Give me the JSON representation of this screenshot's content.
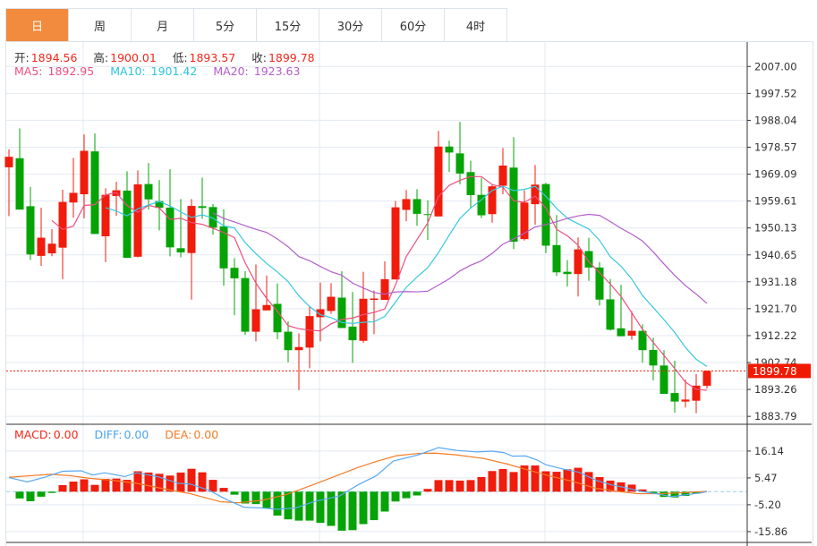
{
  "tabs": [
    "日",
    "周",
    "月",
    "5分",
    "15分",
    "30分",
    "60分",
    "4时"
  ],
  "active_tab": 0,
  "ohlc": {
    "open_label": "开:",
    "open": "1894.56",
    "high_label": "高:",
    "high": "1900.01",
    "low_label": "低:",
    "low": "1893.57",
    "close_label": "收:",
    "close": "1899.78"
  },
  "ma": {
    "ma5_label": "MA5:",
    "ma5": "1892.95",
    "ma10_label": "MA10:",
    "ma10": "1901.42",
    "ma20_label": "MA20:",
    "ma20": "1923.63"
  },
  "macd_info": {
    "macd_label": "MACD:",
    "macd": "0.00",
    "diff_label": "DIFF:",
    "diff": "0.00",
    "dea_label": "DEA:",
    "dea": "0.00"
  },
  "colors": {
    "up": "#f01c0c",
    "down": "#06a306",
    "ma5": "#ec4f80",
    "ma10": "#37c8e0",
    "ma20": "#b25ec9",
    "diff": "#5aa9f0",
    "dea": "#f37b23",
    "accent": "#f28b3d"
  },
  "chart_data": {
    "type": "candlestick",
    "price_axis": {
      "ticks": [
        "2007.00",
        "1997.52",
        "1988.04",
        "1978.57",
        "1969.09",
        "1959.61",
        "1950.13",
        "1940.65",
        "1931.18",
        "1921.70",
        "1912.22",
        "1902.74",
        "1893.26",
        "1883.79"
      ],
      "range": [
        1881.0,
        2015.6
      ]
    },
    "last_price": "1899.78",
    "candles_ohlc": [
      [
        1971.5,
        1977.8,
        1954.3,
        1975.2
      ],
      [
        1974.7,
        1985.2,
        1956.6,
        1956.6
      ],
      [
        1957.8,
        1964.6,
        1938.9,
        1940.8
      ],
      [
        1940.3,
        1957.3,
        1936.8,
        1946.7
      ],
      [
        1941.2,
        1949.7,
        1940.2,
        1944.6
      ],
      [
        1943.2,
        1963.6,
        1932.1,
        1959.3
      ],
      [
        1959.1,
        1974.8,
        1953.7,
        1962.5
      ],
      [
        1962.0,
        1983.1,
        1953.5,
        1977.3
      ],
      [
        1977.1,
        1983.4,
        1948.0,
        1948.0
      ],
      [
        1947.2,
        1964.1,
        1938.1,
        1961.8
      ],
      [
        1961.4,
        1966.4,
        1954.4,
        1963.4
      ],
      [
        1963.3,
        1970.1,
        1939.6,
        1939.6
      ],
      [
        1940.0,
        1970.4,
        1939.8,
        1965.5
      ],
      [
        1965.6,
        1973.0,
        1956.6,
        1960.2
      ],
      [
        1959.6,
        1967.0,
        1949.3,
        1957.2
      ],
      [
        1957.3,
        1970.8,
        1940.1,
        1943.3
      ],
      [
        1943.0,
        1960.3,
        1939.8,
        1941.5
      ],
      [
        1941.3,
        1960.3,
        1924.9,
        1957.9
      ],
      [
        1957.8,
        1967.9,
        1953.4,
        1957.2
      ],
      [
        1957.5,
        1958.6,
        1947.8,
        1950.2
      ],
      [
        1950.7,
        1956.7,
        1929.8,
        1935.9
      ],
      [
        1936.1,
        1939.5,
        1919.4,
        1932.4
      ],
      [
        1932.5,
        1934.9,
        1912.5,
        1913.6
      ],
      [
        1913.6,
        1937.3,
        1910.2,
        1921.5
      ],
      [
        1921.1,
        1933.4,
        1921.1,
        1923.0
      ],
      [
        1923.4,
        1930.6,
        1910.9,
        1913.4
      ],
      [
        1913.6,
        1917.2,
        1902.8,
        1907.1
      ],
      [
        1907.1,
        1913.0,
        1893.0,
        1908.2
      ],
      [
        1908.0,
        1922.5,
        1900.7,
        1919.1
      ],
      [
        1918.7,
        1930.9,
        1910.2,
        1921.5
      ],
      [
        1920.9,
        1930.7,
        1919.9,
        1925.9
      ],
      [
        1925.6,
        1934.9,
        1914.9,
        1914.9
      ],
      [
        1915.4,
        1927.6,
        1902.6,
        1910.6
      ],
      [
        1910.4,
        1934.7,
        1909.7,
        1925.2
      ],
      [
        1924.8,
        1928.1,
        1912.7,
        1925.3
      ],
      [
        1924.8,
        1938.4,
        1924.8,
        1932.1
      ],
      [
        1932.0,
        1959.6,
        1932.0,
        1957.4
      ],
      [
        1956.5,
        1963.5,
        1952.5,
        1960.3
      ],
      [
        1960.3,
        1963.8,
        1950.9,
        1955.1
      ],
      [
        1955.0,
        1959.9,
        1945.9,
        1954.7
      ],
      [
        1954.2,
        1984.3,
        1954.2,
        1978.8
      ],
      [
        1978.8,
        1980.9,
        1969.8,
        1976.7
      ],
      [
        1976.4,
        1987.5,
        1965.5,
        1969.3
      ],
      [
        1969.8,
        1973.8,
        1957.3,
        1961.7
      ],
      [
        1961.8,
        1967.8,
        1953.6,
        1954.6
      ],
      [
        1955.0,
        1965.4,
        1952.0,
        1964.8
      ],
      [
        1965.0,
        1978.3,
        1962.0,
        1972.1
      ],
      [
        1971.4,
        1982.1,
        1942.7,
        1945.3
      ],
      [
        1946.2,
        1963.4,
        1945.7,
        1959.1
      ],
      [
        1958.5,
        1972.3,
        1951.3,
        1965.4
      ],
      [
        1965.6,
        1966.0,
        1941.3,
        1943.9
      ],
      [
        1944.1,
        1954.7,
        1933.2,
        1934.5
      ],
      [
        1934.7,
        1938.8,
        1929.5,
        1933.9
      ],
      [
        1933.9,
        1946.8,
        1926.0,
        1942.6
      ],
      [
        1942.0,
        1946.7,
        1931.5,
        1936.2
      ],
      [
        1936.2,
        1938.1,
        1922.8,
        1924.9
      ],
      [
        1925.0,
        1932.2,
        1914.0,
        1914.3
      ],
      [
        1914.8,
        1930.1,
        1912.0,
        1912.0
      ],
      [
        1912.2,
        1920.8,
        1910.8,
        1913.9
      ],
      [
        1913.9,
        1916.2,
        1902.7,
        1907.1
      ],
      [
        1907.2,
        1911.5,
        1896.4,
        1901.7
      ],
      [
        1901.7,
        1907.1,
        1891.7,
        1891.7
      ],
      [
        1892.0,
        1903.4,
        1885.1,
        1889.0
      ],
      [
        1889.0,
        1896.7,
        1886.9,
        1889.7
      ],
      [
        1889.3,
        1898.7,
        1884.9,
        1894.6
      ],
      [
        1894.56,
        1900.01,
        1893.57,
        1899.78
      ]
    ],
    "macd_axis": {
      "ticks": [
        "16.14",
        "5.47",
        "-5.20",
        "-15.86"
      ],
      "tick_values": [
        16.14,
        5.47,
        -5.2,
        -15.86
      ]
    },
    "macd_hist": [
      0,
      -2.7,
      -3.8,
      -2.0,
      -0.5,
      2.6,
      4.0,
      4.9,
      2.7,
      5.1,
      5.2,
      4.7,
      8.1,
      7.6,
      7.1,
      6.4,
      7.6,
      9.1,
      7.7,
      4.7,
      1.5,
      -1.2,
      -4.7,
      -4.9,
      -6.5,
      -9.5,
      -11.0,
      -11.5,
      -11.5,
      -12.4,
      -13.6,
      -15.5,
      -15.3,
      -12.9,
      -11.3,
      -7.9,
      -3.9,
      -2.6,
      -1.5,
      1.1,
      4.6,
      4.6,
      4.4,
      4.6,
      5.8,
      8.2,
      9.0,
      7.8,
      10.4,
      10.4,
      8.1,
      7.9,
      8.9,
      9.5,
      7.8,
      5.8,
      4.4,
      3.7,
      2.8,
      0.9,
      -0.8,
      -2.1,
      -2.3,
      -1.7,
      -0.8,
      0
    ],
    "diff": [
      [
        0,
        5.6
      ],
      [
        1.7,
        3.9
      ],
      [
        3.3,
        5.7
      ],
      [
        5,
        8.1
      ],
      [
        6.7,
        8.3
      ],
      [
        7.8,
        6.6
      ],
      [
        8.9,
        7.5
      ],
      [
        10.8,
        6.0
      ],
      [
        11.9,
        7.5
      ],
      [
        13.9,
        5.9
      ],
      [
        15.8,
        3.3
      ],
      [
        16.9,
        3.0
      ],
      [
        18.6,
        0.6
      ],
      [
        20.3,
        -3.2
      ],
      [
        21.9,
        -6.2
      ],
      [
        23.6,
        -6.5
      ],
      [
        25,
        -7.0
      ],
      [
        26.7,
        -6.5
      ],
      [
        28.3,
        -4.1
      ],
      [
        30.8,
        -1.7
      ],
      [
        32.5,
        2.7
      ],
      [
        34.2,
        6.3
      ],
      [
        35.8,
        12.2
      ],
      [
        38.1,
        14.6
      ],
      [
        40,
        17.5
      ],
      [
        41.7,
        16.4
      ],
      [
        43.6,
        15.8
      ],
      [
        45,
        16.1
      ],
      [
        46.1,
        15.5
      ],
      [
        46.9,
        14.1
      ],
      [
        48.1,
        14.2
      ],
      [
        49.2,
        12.6
      ],
      [
        50,
        10.7
      ],
      [
        51.7,
        8.9
      ],
      [
        53.1,
        7.7
      ],
      [
        54.7,
        4.5
      ],
      [
        56.1,
        2.7
      ],
      [
        57.5,
        1.5
      ],
      [
        58.9,
        0.1
      ],
      [
        60.3,
        -0.8
      ],
      [
        61.7,
        -2.0
      ],
      [
        63.1,
        -1.2
      ],
      [
        64.4,
        -0.5
      ],
      [
        65,
        0
      ]
    ],
    "dea": [
      [
        0,
        5.7
      ],
      [
        1.9,
        6.3
      ],
      [
        3.9,
        6.9
      ],
      [
        5.8,
        6.3
      ],
      [
        7.5,
        5.3
      ],
      [
        9.7,
        4.5
      ],
      [
        11.9,
        3.3
      ],
      [
        14.7,
        0.9
      ],
      [
        16.9,
        -0.8
      ],
      [
        19.7,
        -4.0
      ],
      [
        21.4,
        -4.4
      ],
      [
        23.6,
        -3.4
      ],
      [
        25.8,
        -1.2
      ],
      [
        28.3,
        2.7
      ],
      [
        32.5,
        9.6
      ],
      [
        34.2,
        12.0
      ],
      [
        36.1,
        14.3
      ],
      [
        38.1,
        15.2
      ],
      [
        39.7,
        15.3
      ],
      [
        41.7,
        14.6
      ],
      [
        44.2,
        13.2
      ],
      [
        46.4,
        11.0
      ],
      [
        48.1,
        8.9
      ],
      [
        50.3,
        6.3
      ],
      [
        52.5,
        4.1
      ],
      [
        54.7,
        1.3
      ],
      [
        56.7,
        0.1
      ],
      [
        58.6,
        -0.8
      ],
      [
        60.8,
        -0.8
      ],
      [
        65,
        0.1
      ]
    ]
  }
}
